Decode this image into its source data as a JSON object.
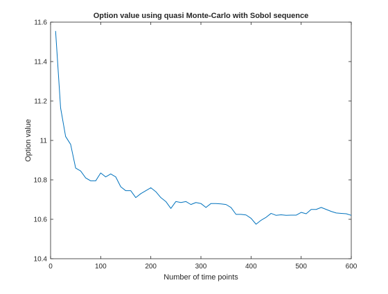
{
  "chart_data": {
    "type": "line",
    "title": "Option value using quasi Monte-Carlo with Sobol sequence",
    "xlabel": "Number of time points",
    "ylabel": "Option value",
    "xlim": [
      0,
      600
    ],
    "ylim": [
      10.4,
      11.6
    ],
    "xticks": [
      0,
      100,
      200,
      300,
      400,
      500,
      600
    ],
    "yticks": [
      10.4,
      10.6,
      10.8,
      11,
      11.2,
      11.4,
      11.6
    ],
    "xtick_labels": [
      "0",
      "100",
      "200",
      "300",
      "400",
      "500",
      "600"
    ],
    "ytick_labels": [
      "10.4",
      "10.6",
      "10.8",
      "11",
      "11.2",
      "11.4",
      "11.6"
    ],
    "grid": false,
    "line_color": "#0072BD",
    "series": [
      {
        "x": [
          10,
          20,
          30,
          40,
          50,
          60,
          70,
          80,
          90,
          100,
          110,
          120,
          130,
          140,
          150,
          160,
          170,
          180,
          190,
          200,
          210,
          220,
          230,
          240,
          250,
          260,
          270,
          280,
          290,
          300,
          310,
          320,
          330,
          340,
          350,
          360,
          370,
          380,
          390,
          400,
          410,
          420,
          430,
          440,
          450,
          460,
          470,
          480,
          490,
          500,
          510,
          520,
          530,
          540,
          550,
          560,
          570,
          580,
          590,
          600
        ],
        "values": [
          11.555,
          11.165,
          11.02,
          10.98,
          10.86,
          10.845,
          10.81,
          10.795,
          10.795,
          10.835,
          10.815,
          10.83,
          10.815,
          10.765,
          10.745,
          10.745,
          10.71,
          10.73,
          10.745,
          10.76,
          10.74,
          10.71,
          10.69,
          10.655,
          10.69,
          10.685,
          10.69,
          10.675,
          10.685,
          10.68,
          10.66,
          10.68,
          10.68,
          10.678,
          10.675,
          10.66,
          10.625,
          10.625,
          10.622,
          10.605,
          10.575,
          10.595,
          10.61,
          10.63,
          10.62,
          10.623,
          10.62,
          10.621,
          10.621,
          10.635,
          10.628,
          10.65,
          10.65,
          10.66,
          10.65,
          10.64,
          10.632,
          10.63,
          10.628,
          10.62
        ]
      }
    ]
  }
}
